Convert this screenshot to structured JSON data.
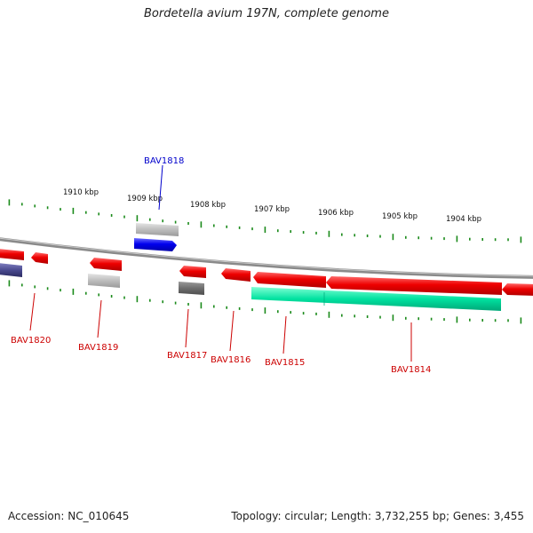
{
  "title": "Bordetella avium 197N, complete genome",
  "footer": {
    "accession": "Accession: NC_010645",
    "topology": "Topology: circular; Length: 3,732,255 bp; Genes: 3,455"
  },
  "colors": {
    "backbone": "#8c8c8c",
    "forward_gene": "#0000ee",
    "reverse_gene": "#ee0000",
    "rna_gene": "#bdbdbd",
    "pseudo_gene": "#6e6e6e",
    "other_feature": "#00e2a0",
    "tick": "#1a8a1a",
    "label_forward": "#0000cc",
    "label_reverse": "#cc0000"
  },
  "kbp_ticks": [
    "1910 kbp",
    "1909 kbp",
    "1908 kbp",
    "1907 kbp",
    "1906 kbp",
    "1905 kbp",
    "1904 kbp"
  ],
  "genes": [
    {
      "name": "BAV1818",
      "strand": "forward",
      "kind": "cds",
      "labeled": true
    },
    {
      "name": "",
      "strand": "forward",
      "kind": "rna",
      "labeled": false
    },
    {
      "name": "",
      "strand": "reverse",
      "kind": "cds",
      "labeled": false
    },
    {
      "name": "",
      "strand": "reverse",
      "kind": "other",
      "labeled": false
    },
    {
      "name": "BAV1820",
      "strand": "reverse",
      "kind": "cds",
      "labeled": true
    },
    {
      "name": "BAV1819",
      "strand": "reverse",
      "kind": "cds",
      "labeled": true
    },
    {
      "name": "",
      "strand": "reverse",
      "kind": "rna",
      "labeled": false
    },
    {
      "name": "BAV1817",
      "strand": "reverse",
      "kind": "cds",
      "labeled": true
    },
    {
      "name": "",
      "strand": "reverse",
      "kind": "pseudo",
      "labeled": false
    },
    {
      "name": "BAV1816",
      "strand": "reverse",
      "kind": "cds",
      "labeled": true
    },
    {
      "name": "BAV1815",
      "strand": "reverse",
      "kind": "cds",
      "labeled": true
    },
    {
      "name": "",
      "strand": "reverse",
      "kind": "other",
      "labeled": false
    },
    {
      "name": "BAV1814",
      "strand": "reverse",
      "kind": "cds",
      "labeled": true
    },
    {
      "name": "",
      "strand": "reverse",
      "kind": "cds",
      "labeled": false
    }
  ]
}
